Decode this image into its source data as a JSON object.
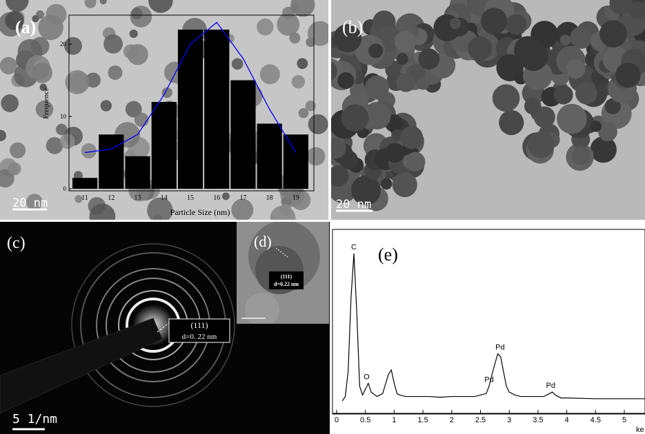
{
  "panels": {
    "a": {
      "label": "(a)",
      "scale_bar": "20 nm"
    },
    "b": {
      "label": "(b)",
      "scale_bar": "20 nm"
    },
    "c": {
      "label": "(c)",
      "scale_bar": "5 1/nm",
      "annotation": [
        "(111)",
        "d=0. 22 nm"
      ]
    },
    "d": {
      "label": "(d)",
      "annotation": [
        "(111)",
        "d=0.22 nm"
      ]
    },
    "e": {
      "label": "(e)"
    }
  },
  "chart_data": [
    {
      "type": "bar",
      "x_label": "Particle Size (nm)",
      "y_label": "Frequence",
      "categories": [
        "11",
        "12",
        "13",
        "14",
        "15",
        "16",
        "17",
        "18",
        "19"
      ],
      "series": [
        {
          "type": "bar",
          "color": "#000000",
          "values": [
            1.5,
            7.5,
            4.5,
            12,
            22,
            22,
            15,
            9,
            7.5
          ]
        },
        {
          "type": "line",
          "color": "#0000ff",
          "values": [
            5,
            5.5,
            7.5,
            13,
            20,
            23,
            18,
            11,
            5
          ]
        }
      ],
      "ylim": [
        0,
        24
      ],
      "yticks": [
        0,
        10,
        20
      ]
    },
    {
      "type": "line",
      "x_label": "ke",
      "color": "#000000",
      "x": [
        0.1,
        0.15,
        0.2,
        0.25,
        0.3,
        0.35,
        0.4,
        0.45,
        0.5,
        0.55,
        0.6,
        0.7,
        0.8,
        0.9,
        0.95,
        1.0,
        1.05,
        1.1,
        1.2,
        1.4,
        1.6,
        1.8,
        2.0,
        2.2,
        2.4,
        2.5,
        2.6,
        2.65,
        2.7,
        2.75,
        2.8,
        2.85,
        2.9,
        2.95,
        3.0,
        3.1,
        3.2,
        3.4,
        3.6,
        3.7,
        3.75,
        3.8,
        3.9,
        4.0,
        4.5,
        5.0,
        5.4
      ],
      "values": [
        0,
        3,
        20,
        70,
        100,
        60,
        10,
        4,
        8,
        12,
        6,
        3,
        5,
        18,
        21,
        12,
        5,
        4,
        3,
        3,
        3,
        2.5,
        3,
        3,
        3,
        4,
        5,
        10,
        18,
        25,
        32,
        30,
        20,
        10,
        6,
        4,
        3,
        3,
        3,
        5,
        6,
        4,
        2,
        2,
        1.5,
        1.5,
        1.5
      ],
      "xlim": [
        0,
        5.4
      ],
      "xticks": [
        0,
        0.5,
        1,
        1.5,
        2,
        2.5,
        3,
        3.5,
        4,
        4.5,
        5
      ],
      "ylim": [
        0,
        100
      ],
      "annotations": [
        {
          "text": "C",
          "x": 0.3,
          "y": 100
        },
        {
          "text": "O",
          "x": 0.52,
          "y": 12
        },
        {
          "text": "Pd",
          "x": 2.65,
          "y": 10
        },
        {
          "text": "Pd",
          "x": 2.84,
          "y": 32
        },
        {
          "text": "Pd",
          "x": 3.72,
          "y": 6
        }
      ]
    }
  ]
}
